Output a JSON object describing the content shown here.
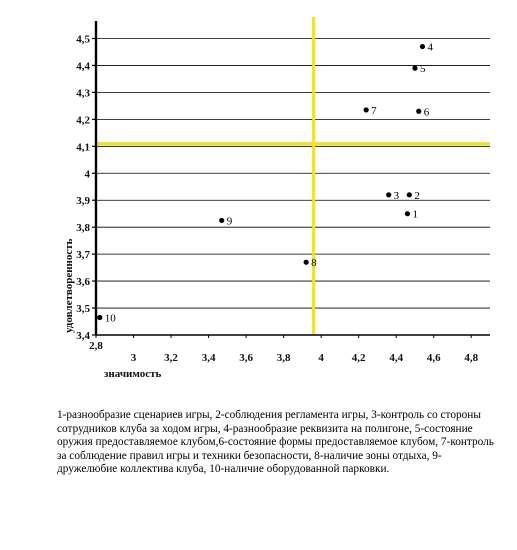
{
  "chart_data": {
    "type": "scatter",
    "xlabel": "значимость",
    "ylabel": "удовлетворенность",
    "xlim": [
      2.8,
      4.9
    ],
    "ylim": [
      3.4,
      4.55
    ],
    "x_ticks": [
      "2,8",
      "3",
      "3,2",
      "3,4",
      "3,6",
      "3,8",
      "4",
      "4,2",
      "4,4",
      "4,6",
      "4,8"
    ],
    "x_tick_values": [
      2.8,
      3.0,
      3.2,
      3.4,
      3.6,
      3.8,
      4.0,
      4.2,
      4.4,
      4.6,
      4.8
    ],
    "y_ticks": [
      "3,4",
      "3,5",
      "3,6",
      "3,7",
      "3,8",
      "3,9",
      "4",
      "4,1",
      "4,2",
      "4,3",
      "4,4",
      "4,5"
    ],
    "y_tick_values": [
      3.4,
      3.5,
      3.6,
      3.7,
      3.8,
      3.9,
      4.0,
      4.1,
      4.2,
      4.3,
      4.4,
      4.5
    ],
    "grid": "horizontal",
    "reference_lines": {
      "x": 3.96,
      "y": 4.11,
      "color": "#f5e211"
    },
    "points": [
      {
        "label": "1",
        "x": 4.46,
        "y": 3.85
      },
      {
        "label": "2",
        "x": 4.47,
        "y": 3.92
      },
      {
        "label": "3",
        "x": 4.36,
        "y": 3.92
      },
      {
        "label": "4",
        "x": 4.54,
        "y": 4.47
      },
      {
        "label": "5",
        "x": 4.5,
        "y": 4.39
      },
      {
        "label": "6",
        "x": 4.52,
        "y": 4.23
      },
      {
        "label": "7",
        "x": 4.24,
        "y": 4.235
      },
      {
        "label": "8",
        "x": 3.92,
        "y": 3.67
      },
      {
        "label": "9",
        "x": 3.47,
        "y": 3.825
      },
      {
        "label": "10",
        "x": 2.82,
        "y": 3.465
      }
    ]
  },
  "caption": "1-разнообразие сценариев игры, 2-соблюдения регламента игры, 3-контроль со стороны сотрудников клуба за ходом игры, 4-разнообразие реквизита на полигоне, 5-состояние оружия предоставляемое клубом,6-состояние формы предоставляемое клубом, 7-контроль за соблюдение правил игры и техники безопасности, 8-наличие зоны отдыха, 9-дружелюбие коллектива клуба, 10-наличие оборудованной парковки."
}
